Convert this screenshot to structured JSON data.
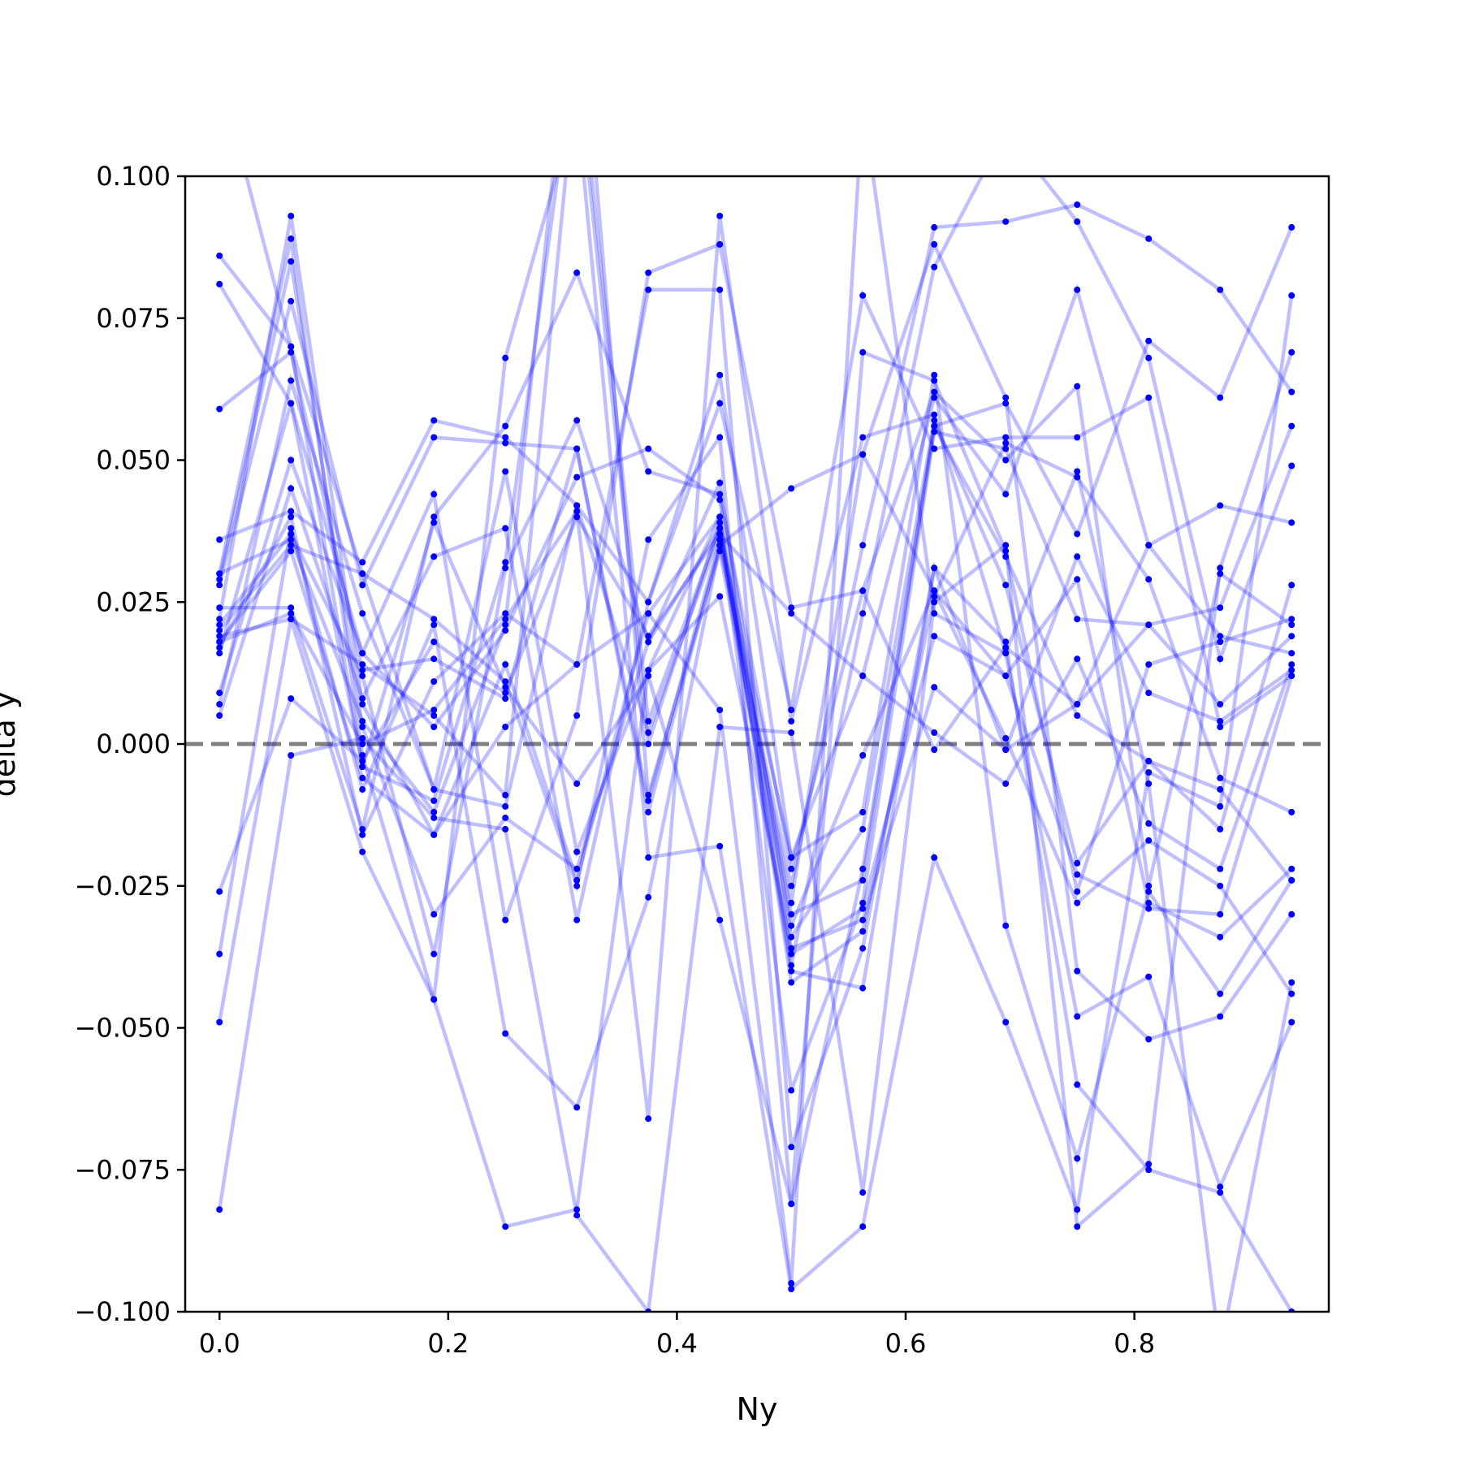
{
  "chart_data": {
    "type": "line",
    "xlabel": "Ny",
    "ylabel": "delta y",
    "xlim": [
      -0.03,
      0.97
    ],
    "ylim": [
      -0.1,
      0.1
    ],
    "x": [
      0.0,
      0.0625,
      0.125,
      0.1875,
      0.25,
      0.3125,
      0.375,
      0.4375,
      0.5,
      0.5625,
      0.625,
      0.6875,
      0.75,
      0.8125,
      0.875,
      0.9375
    ],
    "xticks": [
      0.0,
      0.2,
      0.4,
      0.6,
      0.8
    ],
    "xtick_labels": [
      "0.0",
      "0.2",
      "0.4",
      "0.6",
      "0.8"
    ],
    "yticks": [
      -0.1,
      -0.075,
      -0.05,
      -0.025,
      0.0,
      0.025,
      0.05,
      0.075,
      0.1
    ],
    "ytick_labels": [
      "−0.100",
      "−0.075",
      "−0.050",
      "−0.025",
      "0.000",
      "0.025",
      "0.050",
      "0.075",
      "0.100"
    ],
    "reference_line": {
      "y": 0.0,
      "style": "dashed",
      "color": "#808080"
    },
    "line_color": "#0000ff",
    "line_alpha": 0.25,
    "marker_color": "#0000ff",
    "grid": false,
    "legend": "none",
    "series": [
      {
        "values": [
          0.086,
          0.07,
          0.03,
          -0.008,
          -0.011,
          0.042,
          0.025,
          0.06,
          0.006,
          0.079,
          0.052,
          0.054,
          0.054,
          0.061,
          0.003,
          0.012
        ]
      },
      {
        "values": [
          0.081,
          0.06,
          0.016,
          0.044,
          -0.031,
          0.005,
          0.083,
          0.088,
          0.024,
          0.027,
          0.062,
          0.05,
          0.063,
          -0.025,
          0.03,
          0.021
        ]
      },
      {
        "values": [
          0.059,
          0.069,
          0.013,
          0.015,
          0.008,
          0.052,
          -0.012,
          0.035,
          -0.025,
          0.035,
          0.091,
          0.092,
          0.095,
          0.089,
          0.08,
          0.062
        ]
      },
      {
        "values": [
          0.036,
          0.041,
          0.032,
          0.057,
          0.054,
          0.042,
          0.002,
          0.037,
          -0.02,
          0.012,
          0.061,
          0.044,
          0.08,
          0.035,
          0.042,
          0.039
        ]
      },
      {
        "values": [
          0.03,
          0.089,
          -0.002,
          -0.045,
          -0.085,
          -0.082,
          0.013,
          0.04,
          -0.042,
          -0.033,
          0.026,
          0.053,
          0.047,
          0.029,
          -0.006,
          -0.012
        ]
      },
      {
        "values": [
          0.029,
          0.085,
          0.003,
          -0.03,
          -0.013,
          -0.022,
          0.018,
          0.038,
          -0.03,
          -0.024,
          0.056,
          0.033,
          0.005,
          -0.003,
          -0.008,
          -0.024
        ]
      },
      {
        "values": [
          0.028,
          0.078,
          0.028,
          0.054,
          0.053,
          0.052,
          -0.01,
          0.036,
          -0.028,
          0.051,
          0.088,
          0.061,
          -0.04,
          -0.052,
          -0.048,
          -0.03
        ]
      },
      {
        "values": [
          0.024,
          0.024,
          -0.015,
          0.04,
          0.056,
          0.083,
          0.048,
          0.044,
          -0.022,
          0.027,
          -0.001,
          0.017,
          0.007,
          0.035,
          0.019,
          0.016
        ]
      },
      {
        "values": [
          0.022,
          0.093,
          0.007,
          -0.016,
          0.014,
          -0.024,
          0.023,
          0.04,
          -0.061,
          -0.028,
          0.055,
          0.052,
          0.022,
          0.021,
          0.007,
          0.019
        ]
      },
      {
        "values": [
          0.021,
          0.037,
          0.012,
          -0.037,
          0.031,
          0.057,
          0.018,
          0.046,
          -0.034,
          -0.015,
          0.057,
          0.028,
          -0.021,
          -0.003,
          -0.015,
          0.028
        ]
      },
      {
        "values": [
          0.02,
          0.035,
          0.03,
          0.022,
          0.011,
          -0.025,
          0.036,
          0.054,
          -0.081,
          0.069,
          0.064,
          0.034,
          -0.026,
          0.014,
          0.018,
          0.022
        ]
      },
      {
        "values": [
          0.018,
          0.023,
          0.0,
          0.006,
          0.022,
          0.041,
          -0.066,
          0.093,
          0.004,
          0.054,
          0.058,
          0.016,
          -0.048,
          -0.041,
          -0.078,
          -0.049
        ]
      },
      {
        "values": [
          0.017,
          0.04,
          -0.016,
          0.011,
          0.023,
          0.014,
          0.08,
          0.08,
          -0.071,
          -0.036,
          0.031,
          0.018,
          -0.06,
          -0.075,
          -0.079,
          -0.1
        ]
      },
      {
        "values": [
          0.009,
          0.05,
          0.016,
          0.003,
          0.02,
          0.047,
          0.052,
          0.043,
          -0.037,
          -0.029,
          0.019,
          0.012,
          0.029,
          -0.028,
          -0.034,
          -0.022
        ]
      },
      {
        "values": [
          0.007,
          0.064,
          0.023,
          -0.008,
          0.048,
          -0.019,
          0.013,
          0.026,
          -0.036,
          -0.031,
          0.01,
          -0.001,
          0.007,
          0.021,
          0.024,
          0.056
        ]
      },
      {
        "values": [
          0.005,
          0.045,
          0.008,
          0.033,
          0.038,
          -0.031,
          0.025,
          0.065,
          -0.02,
          -0.012,
          0.065,
          -0.032,
          -0.073,
          -0.026,
          -0.044,
          -0.024
        ]
      },
      {
        "values": [
          -0.026,
          0.008,
          -0.003,
          0.018,
          0.009,
          0.04,
          0.019,
          0.037,
          0.023,
          0.012,
          0.002,
          -0.007,
          0.015,
          -0.014,
          -0.022,
          0.014
        ]
      },
      {
        "values": [
          -0.037,
          0.038,
          -0.008,
          0.021,
          -0.051,
          -0.064,
          -0.027,
          0.035,
          0.045,
          0.051,
          0.027,
          0.001,
          -0.028,
          -0.017,
          -0.025,
          -0.044
        ]
      },
      {
        "values": [
          -0.049,
          0.022,
          -0.019,
          -0.045,
          0.068,
          0.113,
          -0.02,
          -0.018,
          -0.096,
          -0.085,
          -0.02,
          -0.049,
          -0.082,
          -0.005,
          -0.011,
          0.079
        ]
      },
      {
        "values": [
          -0.082,
          -0.002,
          0.001,
          -0.013,
          -0.015,
          -0.083,
          -0.1,
          0.003,
          0.002,
          -0.079,
          0.025,
          0.035,
          -0.085,
          -0.074,
          0.031,
          0.069
        ]
      },
      {
        "values": [
          0.118,
          0.07,
          -0.004,
          -0.01,
          0.032,
          0.125,
          0.004,
          0.038,
          -0.04,
          -0.043,
          0.031,
          -0.001,
          0.033,
          0.009,
          0.004,
          0.013
        ]
      },
      {
        "values": [
          0.019,
          0.022,
          0.014,
          0.005,
          -0.009,
          0.12,
          0.0,
          0.039,
          -0.039,
          0.023,
          0.084,
          0.108,
          0.092,
          0.068,
          0.015,
          0.049
        ]
      },
      {
        "values": [
          0.018,
          0.034,
          -0.006,
          -0.016,
          0.003,
          0.014,
          0.023,
          0.006,
          -0.095,
          0.113,
          0.023,
          0.016,
          0.048,
          -0.007,
          -0.107,
          -0.042
        ]
      },
      {
        "values": [
          0.016,
          0.06,
          -0.004,
          0.039,
          0.01,
          -0.007,
          0.012,
          -0.031,
          -0.081,
          -0.022,
          0.056,
          0.06,
          0.037,
          0.071,
          0.061,
          0.091
        ]
      },
      {
        "values": [
          0.03,
          0.036,
          0.004,
          -0.012,
          0.021,
          0.14,
          -0.009,
          0.034,
          -0.032,
          -0.002,
          0.027,
          0.012,
          -0.023,
          -0.029,
          -0.03,
          0.012
        ]
      }
    ]
  }
}
